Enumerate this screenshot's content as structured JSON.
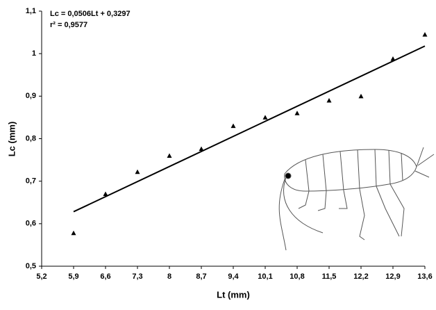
{
  "chart_data": {
    "type": "scatter",
    "annotations": [
      "Lc = 0,0506Lt + 0,3297",
      "r² = 0,9577"
    ],
    "x_label": "Lt (mm)",
    "y_label": "Lc (mm)",
    "x": [
      5.9,
      6.6,
      7.3,
      8,
      8.7,
      9.4,
      10.1,
      10.8,
      11.5,
      12.2,
      12.9,
      13.6
    ],
    "series": [
      {
        "color": "#000000",
        "values": [
          0.578,
          0.67,
          0.722,
          0.76,
          0.776,
          0.83,
          0.85,
          0.86,
          0.89,
          0.9,
          0.988,
          1.045
        ]
      }
    ],
    "fit": {
      "x": [
        5.9,
        13.6
      ],
      "y": [
        0.6282,
        1.0179
      ],
      "color": "#000000"
    },
    "xlim": [
      5.2,
      13.6
    ],
    "xticks": [
      {
        "value": 5.2,
        "label": "5,2"
      },
      {
        "value": 5.9,
        "label": "5,9"
      },
      {
        "value": 6.6,
        "label": "6,6"
      },
      {
        "value": 7.3,
        "label": "7,3"
      },
      8,
      {
        "value": 8.7,
        "label": "8,7"
      },
      {
        "value": 9.4,
        "label": "9,4"
      },
      {
        "value": 10.1,
        "label": "10,1"
      },
      {
        "value": 10.8,
        "label": "10,8"
      },
      {
        "value": 11.5,
        "label": "11,5"
      },
      {
        "value": 12.2,
        "label": "12,2"
      },
      {
        "value": 12.9,
        "label": "12,9"
      },
      {
        "value": 13.6,
        "label": "13,6"
      }
    ],
    "ylim": [
      0.5,
      1.1
    ],
    "yticks": [
      {
        "value": 0.5,
        "label": "0,5"
      },
      {
        "value": 0.6,
        "label": "0,6"
      },
      {
        "value": 0.7,
        "label": "0,7"
      },
      {
        "value": 0.8,
        "label": "0,8"
      },
      {
        "value": 0.9,
        "label": "0,9"
      },
      1,
      {
        "value": 1.1,
        "label": "1,1"
      }
    ],
    "grid": false
  }
}
